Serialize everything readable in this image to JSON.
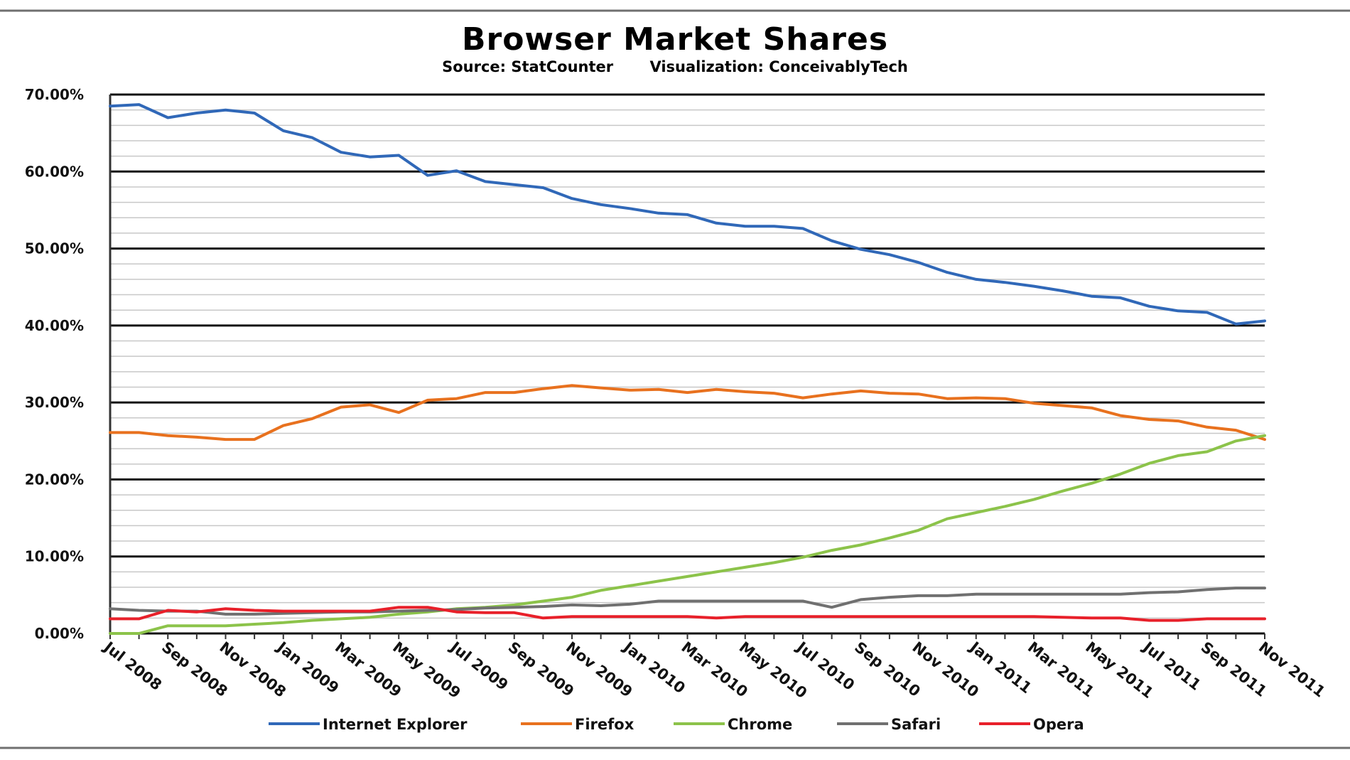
{
  "chart_data": {
    "type": "line",
    "title": "Browser Market Shares",
    "subtitle": {
      "source": "Source: StatCounter",
      "visualization": "Visualization:  ConceivablyTech"
    },
    "xlabel": "",
    "ylabel": "",
    "ylim": [
      0,
      70
    ],
    "y_ticks": [
      "0.00%",
      "10.00%",
      "20.00%",
      "30.00%",
      "40.00%",
      "50.00%",
      "60.00%",
      "70.00%"
    ],
    "grid": true,
    "legend_position": "bottom",
    "categories": [
      "Jul 2008",
      "Aug 2008",
      "Sep 2008",
      "Oct 2008",
      "Nov 2008",
      "Dec 2008",
      "Jan 2009",
      "Feb 2009",
      "Mar 2009",
      "Apr 2009",
      "May 2009",
      "Jun 2009",
      "Jul 2009",
      "Aug 2009",
      "Sep 2009",
      "Oct 2009",
      "Nov 2009",
      "Dec 2009",
      "Jan 2010",
      "Feb 2010",
      "Mar 2010",
      "Apr 2010",
      "May 2010",
      "Jun 2010",
      "Jul 2010",
      "Aug 2010",
      "Sep 2010",
      "Oct 2010",
      "Nov 2010",
      "Dec 2010",
      "Jan 2011",
      "Feb 2011",
      "Mar 2011",
      "Apr 2011",
      "May 2011",
      "Jun 2011",
      "Jul 2011",
      "Aug 2011",
      "Sep 2011",
      "Oct 2011",
      "Nov 2011"
    ],
    "x_tick_labels": [
      "Jul 2008",
      "Sep 2008",
      "Nov 2008",
      "Jan 2009",
      "Mar 2009",
      "May 2009",
      "Jul 2009",
      "Sep 2009",
      "Nov 2009",
      "Jan 2010",
      "Mar 2010",
      "May 2010",
      "Jul 2010",
      "Sep 2010",
      "Nov 2010",
      "Jan 2011",
      "Mar 2011",
      "May 2011",
      "Jul 2011",
      "Sep 2011",
      "Nov 2011"
    ],
    "series": [
      {
        "name": "Internet Explorer",
        "color": "#3068b8",
        "values": [
          68.5,
          68.7,
          67.0,
          67.6,
          68.0,
          67.6,
          65.3,
          64.4,
          62.5,
          61.9,
          62.1,
          59.5,
          60.1,
          58.7,
          58.3,
          57.9,
          56.5,
          55.7,
          55.2,
          54.6,
          54.4,
          53.3,
          52.9,
          52.9,
          52.6,
          51.0,
          49.9,
          49.2,
          48.2,
          46.9,
          46.0,
          45.6,
          45.1,
          44.5,
          43.8,
          43.6,
          42.5,
          41.9,
          41.7,
          40.2,
          40.6
        ]
      },
      {
        "name": "Firefox",
        "color": "#e8711e",
        "values": [
          26.1,
          26.1,
          25.7,
          25.5,
          25.2,
          25.2,
          27.0,
          27.9,
          29.4,
          29.7,
          28.7,
          30.3,
          30.5,
          31.3,
          31.3,
          31.8,
          32.2,
          31.9,
          31.6,
          31.7,
          31.3,
          31.7,
          31.4,
          31.2,
          30.6,
          31.1,
          31.5,
          31.2,
          31.1,
          30.5,
          30.6,
          30.5,
          29.9,
          29.6,
          29.3,
          28.3,
          27.8,
          27.6,
          26.8,
          26.4,
          25.2
        ]
      },
      {
        "name": "Chrome",
        "color": "#8cc34a",
        "values": [
          0.0,
          0.0,
          1.0,
          1.0,
          1.0,
          1.2,
          1.4,
          1.7,
          1.9,
          2.1,
          2.5,
          2.8,
          3.2,
          3.4,
          3.7,
          4.2,
          4.7,
          5.6,
          6.2,
          6.8,
          7.4,
          8.0,
          8.6,
          9.2,
          9.9,
          10.8,
          11.5,
          12.4,
          13.4,
          14.9,
          15.7,
          16.5,
          17.4,
          18.5,
          19.5,
          20.7,
          22.1,
          23.1,
          23.6,
          25.0,
          25.7
        ]
      },
      {
        "name": "Safari",
        "color": "#707070",
        "values": [
          3.2,
          3.0,
          2.9,
          2.9,
          2.5,
          2.5,
          2.6,
          2.7,
          2.8,
          2.8,
          2.9,
          3.0,
          3.1,
          3.3,
          3.4,
          3.5,
          3.7,
          3.6,
          3.8,
          4.2,
          4.2,
          4.2,
          4.2,
          4.2,
          4.2,
          3.4,
          4.4,
          4.7,
          4.9,
          4.9,
          5.1,
          5.1,
          5.1,
          5.1,
          5.1,
          5.1,
          5.3,
          5.4,
          5.7,
          5.9,
          5.9
        ]
      },
      {
        "name": "Opera",
        "color": "#e8202a",
        "values": [
          1.9,
          1.9,
          3.0,
          2.8,
          3.2,
          3.0,
          2.9,
          2.9,
          2.9,
          2.9,
          3.4,
          3.4,
          2.8,
          2.7,
          2.7,
          2.0,
          2.2,
          2.2,
          2.2,
          2.2,
          2.2,
          2.0,
          2.2,
          2.2,
          2.2,
          2.2,
          2.2,
          2.2,
          2.2,
          2.2,
          2.2,
          2.2,
          2.2,
          2.1,
          2.0,
          2.0,
          1.7,
          1.7,
          1.9,
          1.9,
          1.9
        ]
      }
    ]
  }
}
